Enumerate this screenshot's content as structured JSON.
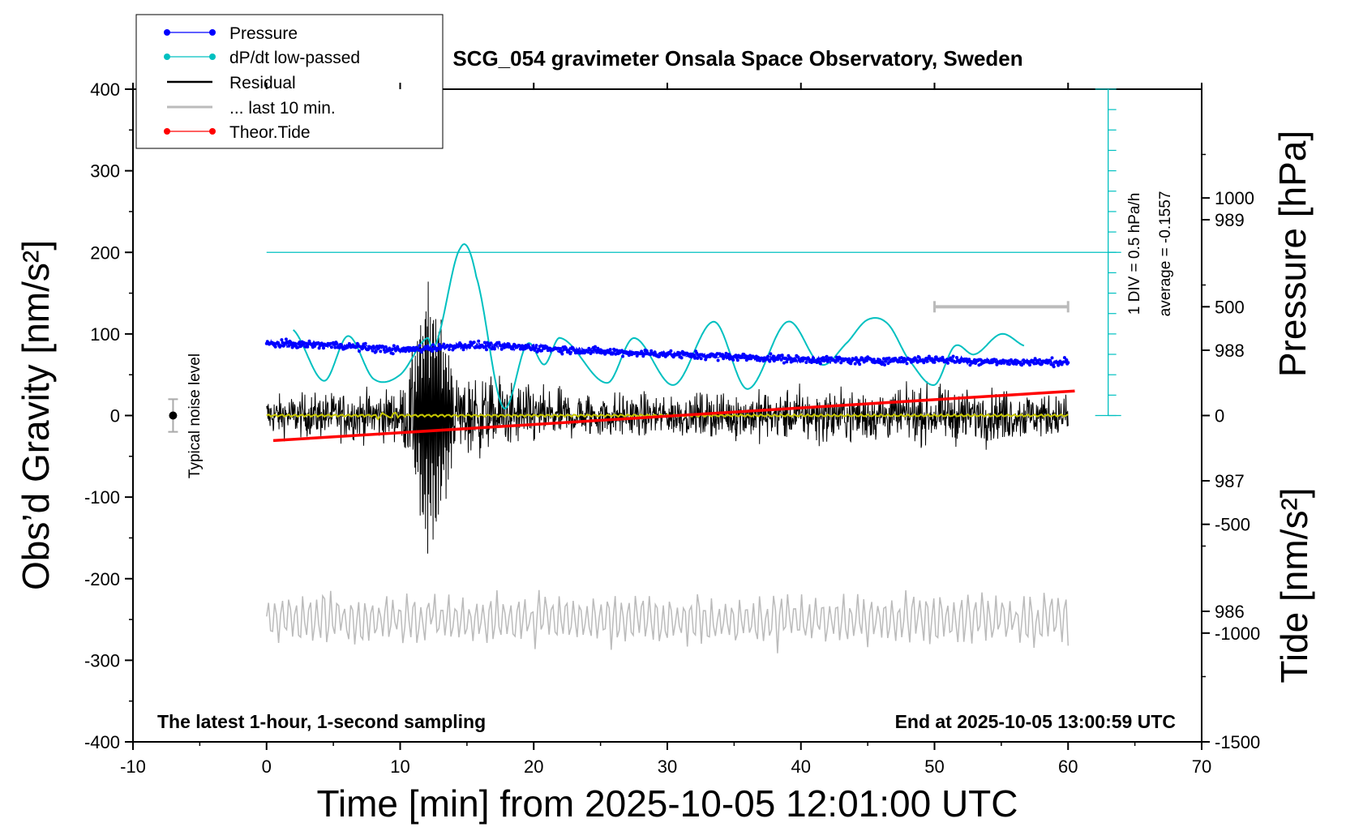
{
  "chart_data": {
    "type": "line",
    "title": "SCG_054 gravimeter Onsala Space Observatory, Sweden",
    "xlabel": "Time [min] from 2025-10-05 12:01:00 UTC",
    "ylabel": "Obs’d Gravity [nm/s²]",
    "y2label_pressure": "Pressure [hPa]",
    "y2label_tide": "Tide [nm/s²]",
    "xlim": [
      -10,
      70
    ],
    "ylim": [
      -400,
      400
    ],
    "pressure_lim": [
      985,
      990
    ],
    "tide_lim": [
      -1500,
      1500
    ],
    "x_ticks": [
      "-10",
      "0",
      "10",
      "20",
      "30",
      "40",
      "50",
      "60",
      "70"
    ],
    "y_ticks": [
      "400",
      "300",
      "200",
      "100",
      "0",
      "-100",
      "-200",
      "-300",
      "-400"
    ],
    "pressure_ticks": [
      "989",
      "988",
      "987",
      "986"
    ],
    "tide_ticks": [
      "1000",
      "500",
      "0",
      "-500",
      "-1000",
      "-1500"
    ],
    "legend_position": "top-left",
    "series": [
      {
        "name": "Pressure",
        "color": "#0000ff",
        "unit": "hPa",
        "x": [
          0,
          5,
          10,
          15,
          20,
          25,
          30,
          35,
          40,
          45,
          50,
          55,
          60
        ],
        "y": [
          988.05,
          988.04,
          988.0,
          988.04,
          988.02,
          987.99,
          987.97,
          987.95,
          987.93,
          987.92,
          987.93,
          987.91,
          987.91
        ]
      },
      {
        "name": "dP/dt low-passed",
        "color": "#00c0c0",
        "unit": "DIV (1 DIV = 0.5 hPa/h)",
        "x": [
          2,
          4.3,
          6.1,
          8,
          10,
          12,
          12.6,
          14.5,
          15.7,
          17.7,
          19.5,
          20.8,
          22,
          25.5,
          27.5,
          30.5,
          33.5,
          36,
          39,
          41.5,
          43.5,
          45,
          46.5,
          48,
          50,
          51.5,
          53,
          55,
          56.8
        ],
        "y": [
          4.2,
          1.7,
          3.9,
          1.8,
          2.0,
          3.8,
          3.4,
          8.2,
          6.8,
          0.4,
          3.5,
          2.5,
          3.8,
          1.6,
          3.8,
          1.5,
          4.6,
          1.3,
          4.6,
          2.5,
          3.6,
          4.7,
          4.5,
          2.8,
          1.5,
          3.4,
          3.0,
          4.0,
          3.4
        ]
      },
      {
        "name": "Residual",
        "color": "#000000",
        "unit": "nm/s²",
        "x": [
          0,
          10,
          11,
          12,
          12.5,
          13,
          14,
          17,
          20,
          30,
          40,
          50,
          55,
          60
        ],
        "envelope": [
          30,
          40,
          90,
          180,
          200,
          140,
          60,
          60,
          40,
          30,
          40,
          40,
          40,
          30
        ]
      },
      {
        "name": "... last 10 min.",
        "color": "#bbbbbb",
        "unit": "nm/s²",
        "x_range": [
          50,
          60
        ]
      },
      {
        "name": "Theor.Tide",
        "color": "#ff0000",
        "unit": "nm/s²",
        "x": [
          0.5,
          60.5
        ],
        "y": [
          -115,
          113
        ]
      }
    ],
    "residual_running_mean": {
      "color": "#c8c800",
      "level": 0
    },
    "noise_level": {
      "x": -7,
      "y": 0,
      "err": 20,
      "label": "Typical noise level"
    },
    "dpdt_axis": {
      "zero_level_gravity": 200,
      "top_gravity": 400,
      "bottom_gravity": 0,
      "label_div": "1 DIV = 0.5 hPa/h",
      "label_avg": "average = -0.1557"
    },
    "annotations": {
      "bottom_left": "The latest 1-hour, 1-second sampling",
      "bottom_right": "End at 2025-10-05 13:00:59 UTC"
    }
  }
}
